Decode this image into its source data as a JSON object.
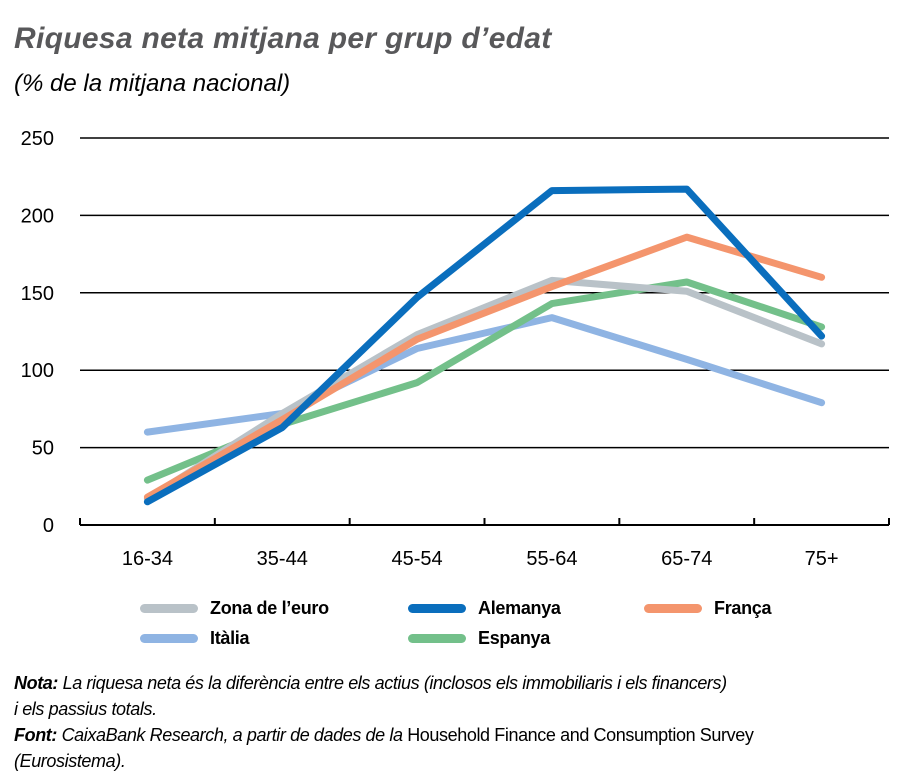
{
  "header": {
    "title": "Riquesa neta mitjana per grup d’edat",
    "subtitle": "(% de la mitjana nacional)"
  },
  "chart_data": {
    "type": "line",
    "title": "Riquesa neta mitjana per grup d’edat",
    "subtitle": "(% de la mitjana nacional)",
    "xlabel": "",
    "ylabel": "",
    "categories": [
      "16-34",
      "35-44",
      "45-54",
      "55-64",
      "65-74",
      "75+"
    ],
    "ylim": [
      0,
      250
    ],
    "yticks": [
      0,
      50,
      100,
      150,
      200,
      250
    ],
    "grid": true,
    "legend_position": "bottom",
    "series": [
      {
        "name": "Zona de l’euro",
        "color": "#b9c2c8",
        "values": [
          17,
          72,
          123,
          158,
          151,
          117
        ]
      },
      {
        "name": "Alemanya",
        "color": "#0a6ebd",
        "values": [
          15,
          63,
          147,
          216,
          217,
          122
        ]
      },
      {
        "name": "França",
        "color": "#f4956d",
        "values": [
          18,
          68,
          120,
          154,
          186,
          160
        ]
      },
      {
        "name": "Itàlia",
        "color": "#8fb4e3",
        "values": [
          60,
          72,
          114,
          134,
          107,
          79
        ]
      },
      {
        "name": "Espanya",
        "color": "#73c08a",
        "values": [
          29,
          65,
          92,
          143,
          157,
          128
        ]
      }
    ]
  },
  "legend": {
    "items": [
      {
        "label": "Zona de l’euro",
        "color": "#b9c2c8"
      },
      {
        "label": "Alemanya",
        "color": "#0a6ebd"
      },
      {
        "label": "França",
        "color": "#f4956d"
      },
      {
        "label": "Itàlia",
        "color": "#8fb4e3"
      },
      {
        "label": "Espanya",
        "color": "#73c08a"
      }
    ]
  },
  "notes": {
    "nota_label": "Nota:",
    "nota_text_1": " La riquesa neta és la diferència entre els actius (inclosos els immobiliaris i els financers)",
    "nota_text_2": "i els passius totals.",
    "font_label": "Font:",
    "font_text": " CaixaBank Research, a partir de dades de la ",
    "font_source": "Household Finance and Consumption Survey",
    "font_text_2": "(Eurosistema)."
  }
}
